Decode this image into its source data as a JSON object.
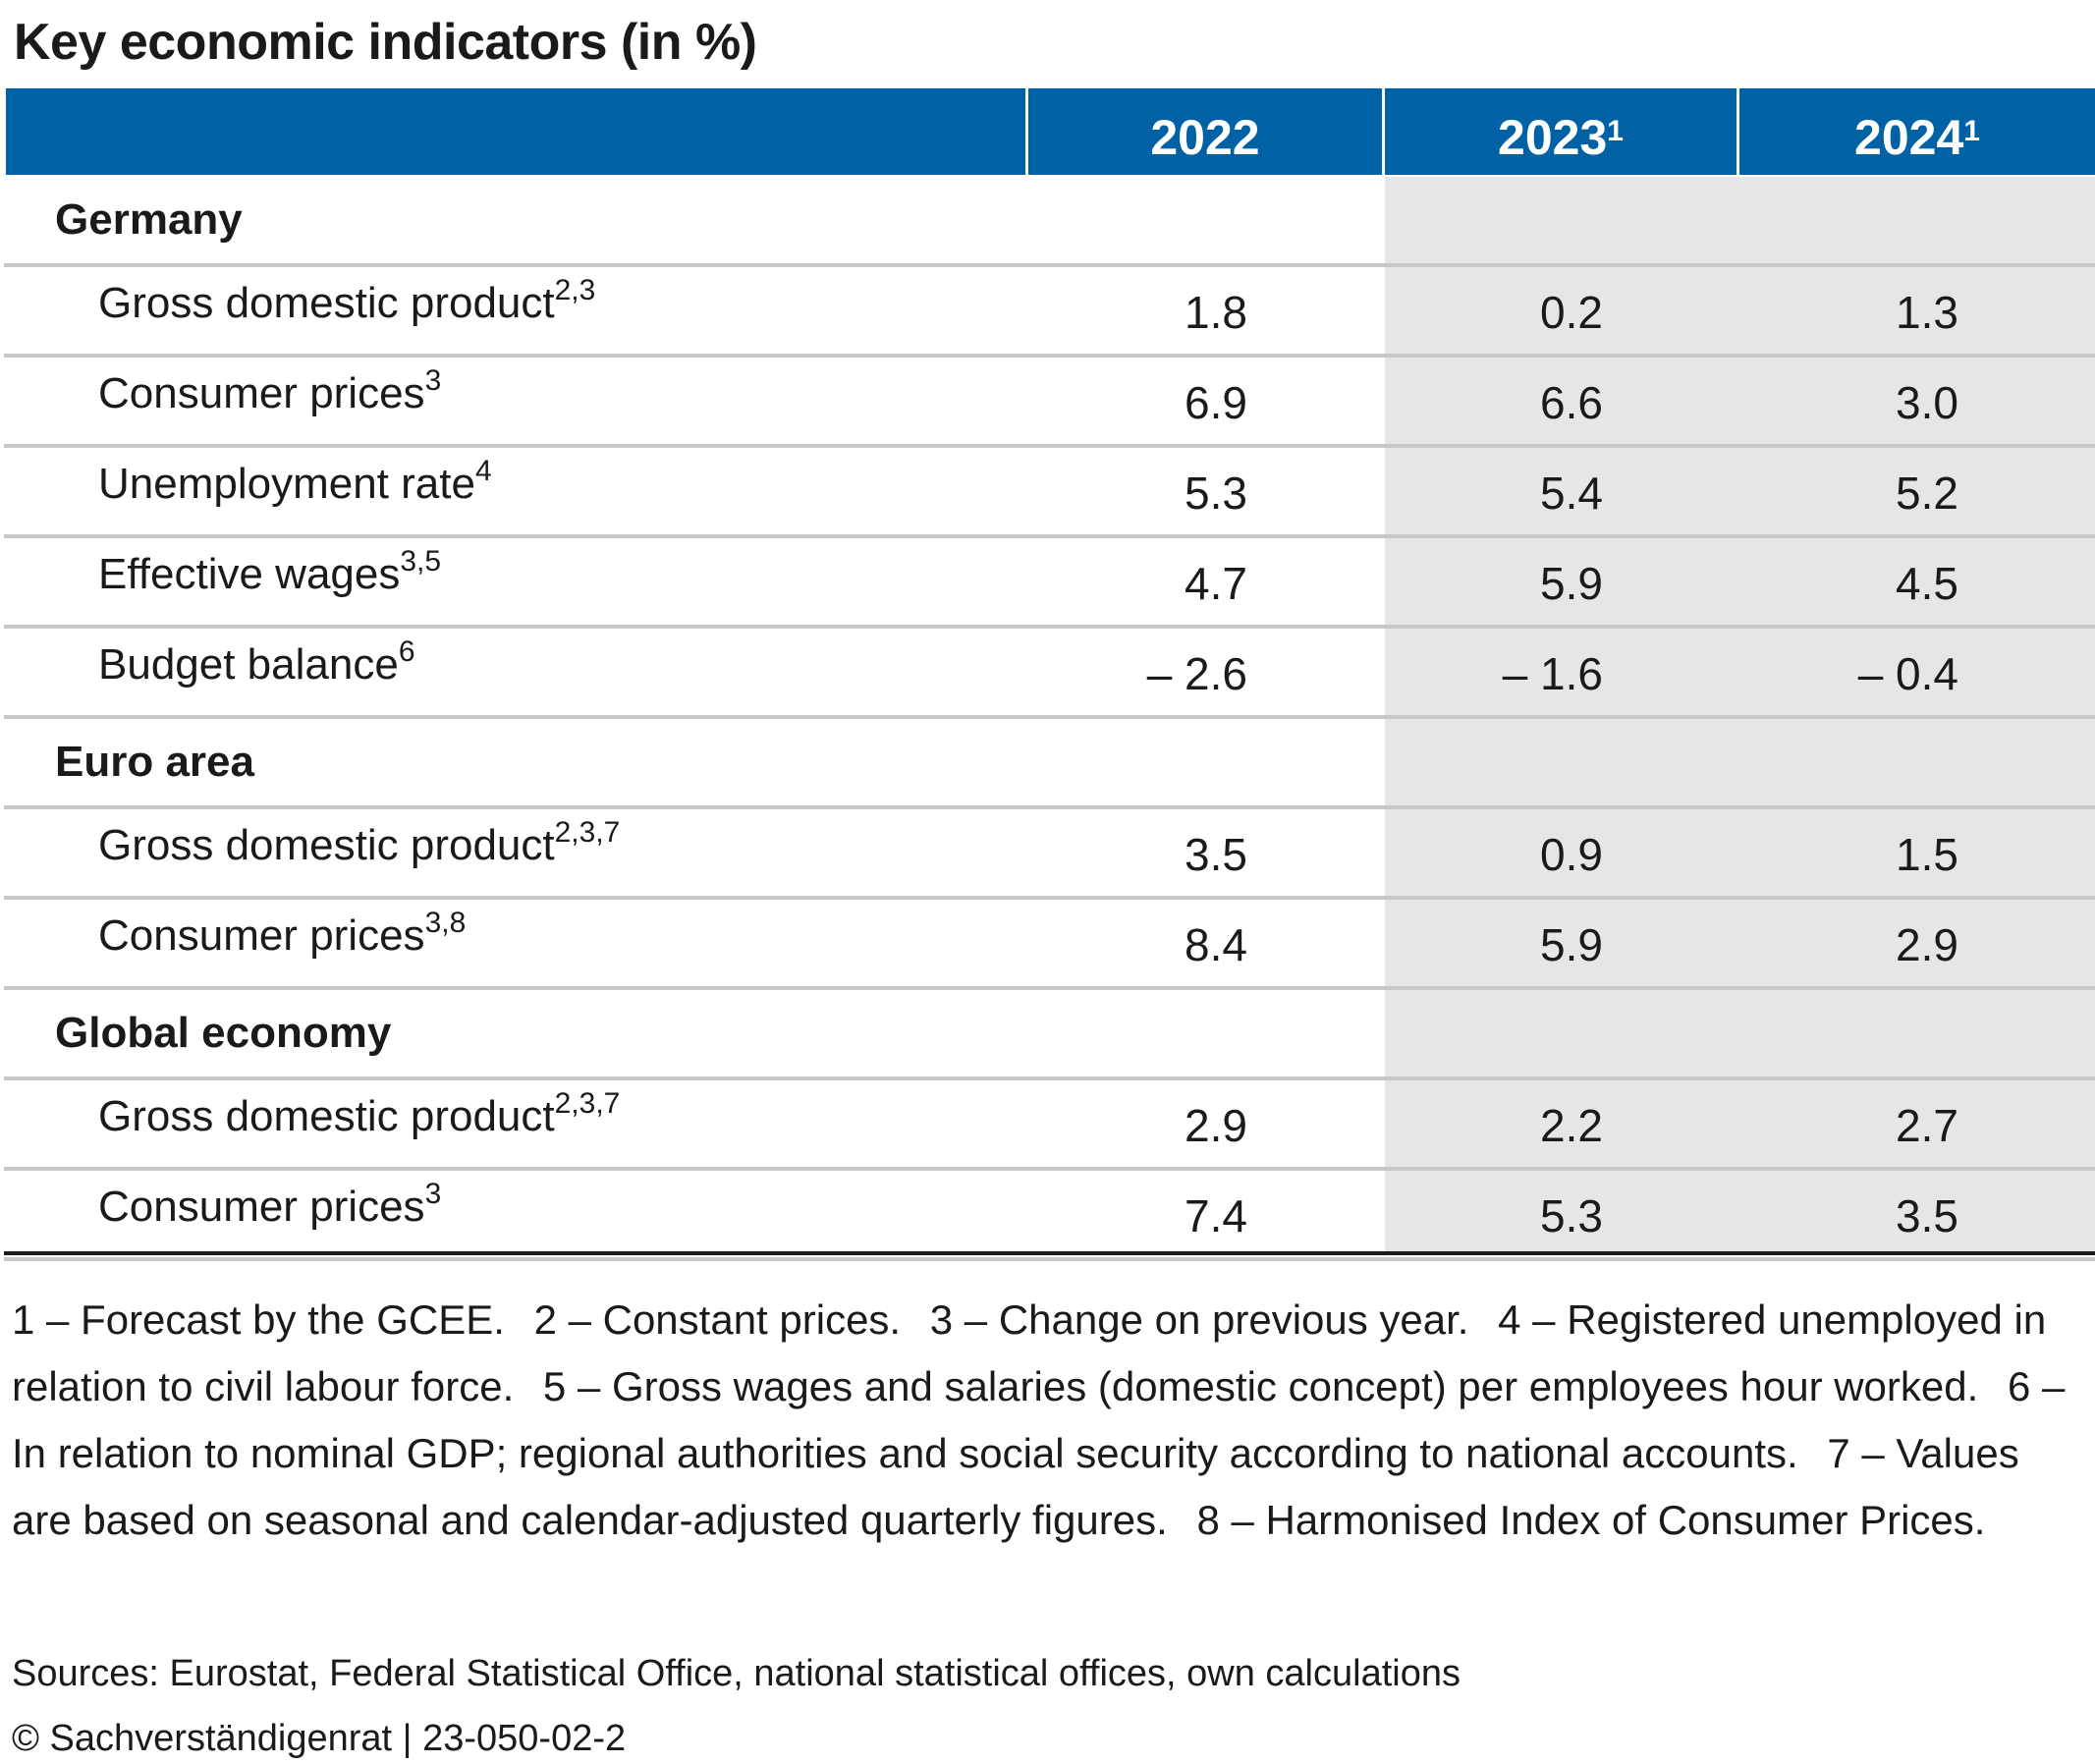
{
  "title": "Key economic indicators (in %)",
  "header": {
    "columns": [
      {
        "label": "2022",
        "footnote": ""
      },
      {
        "label": "2023",
        "footnote": "1"
      },
      {
        "label": "2024",
        "footnote": "1"
      }
    ]
  },
  "sections": [
    {
      "name": "Germany",
      "rows": [
        {
          "label": "Gross domestic product",
          "footnote": "2,3",
          "values": [
            "1.8",
            "0.2",
            "1.3"
          ]
        },
        {
          "label": "Consumer prices",
          "footnote": "3",
          "values": [
            "6.9",
            "6.6",
            "3.0"
          ]
        },
        {
          "label": "Unemployment rate",
          "footnote": "4",
          "values": [
            "5.3",
            "5.4",
            "5.2"
          ]
        },
        {
          "label": "Effective wages",
          "footnote": "3,5",
          "values": [
            "4.7",
            "5.9",
            "4.5"
          ]
        },
        {
          "label": "Budget balance",
          "footnote": "6",
          "values": [
            "– 2.6",
            "– 1.6",
            "– 0.4"
          ]
        }
      ]
    },
    {
      "name": "Euro area",
      "rows": [
        {
          "label": "Gross domestic product",
          "footnote": "2,3,7",
          "values": [
            "3.5",
            "0.9",
            "1.5"
          ]
        },
        {
          "label": "Consumer prices",
          "footnote": "3,8",
          "values": [
            "8.4",
            "5.9",
            "2.9"
          ]
        }
      ]
    },
    {
      "name": "Global economy",
      "rows": [
        {
          "label": "Gross domestic product",
          "footnote": "2,3,7",
          "values": [
            "2.9",
            "2.2",
            "2.7"
          ]
        },
        {
          "label": "Consumer prices",
          "footnote": "3",
          "values": [
            "7.4",
            "5.3",
            "3.5"
          ]
        }
      ]
    }
  ],
  "footnotes": [
    "1 – Forecast by the GCEE.",
    "2 – Constant prices.",
    "3 – Change on previous year.",
    "4 – Registered unemployed in relation to civil labour force.",
    "5 – Gross wages and salaries (domestic concept) per employees hour worked.",
    "6 – In relation to nominal GDP; regional authorities and social security according to national accounts.",
    "7 – Values are based on seasonal and calendar-adjusted quarterly figures.",
    "8 – Harmonised Index of Consumer Prices."
  ],
  "sources": "Sources: Eurostat, Federal Statistical Office, national statistical offices, own calculations",
  "copyright": "© Sachverständigenrat | 23-050-02-2",
  "colors": {
    "header_bg": "#0062a4",
    "header_text": "#ffffff",
    "forecast_shade": "#e6e6e6",
    "row_divider": "#c8c8c8"
  }
}
